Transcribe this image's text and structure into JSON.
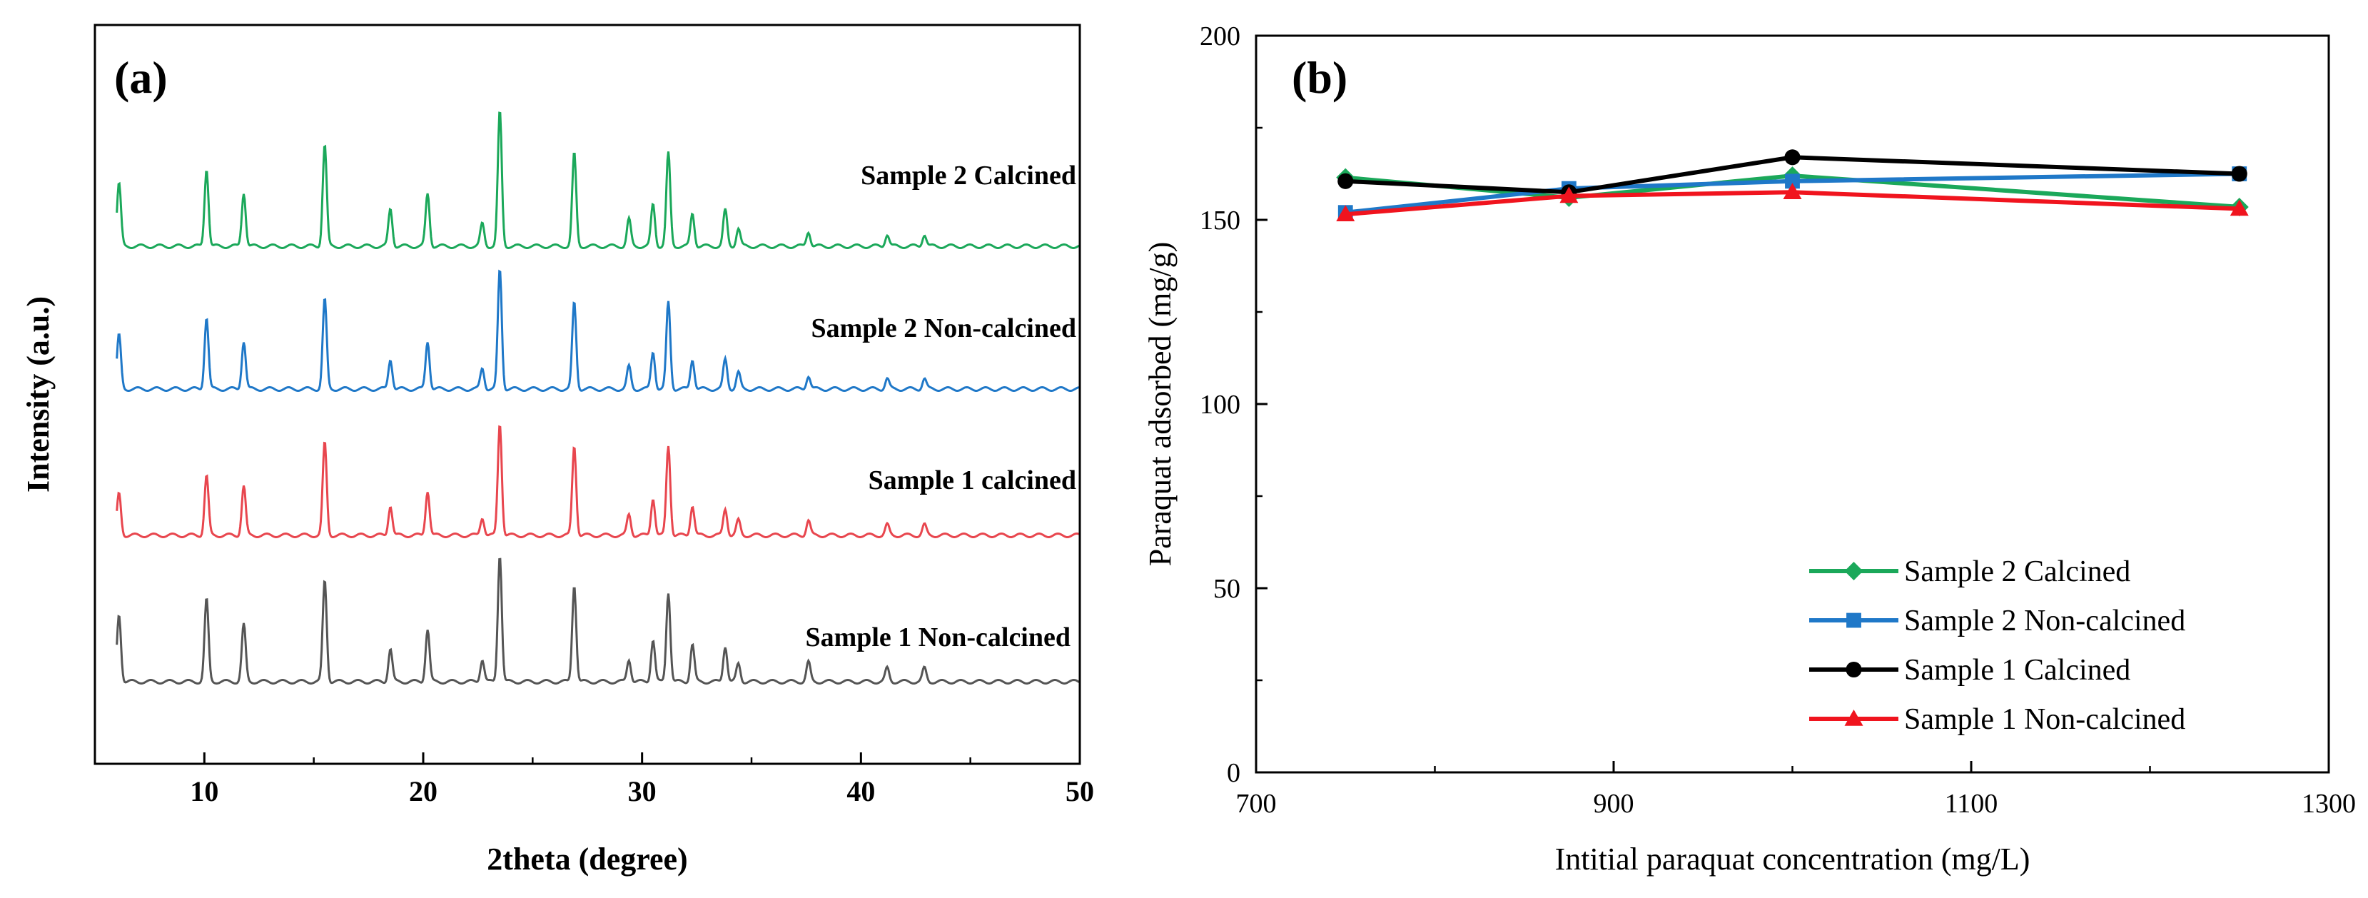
{
  "chart_data": [
    {
      "type": "line",
      "panel_label": "(a)",
      "xlabel": "2theta (degree)",
      "ylabel": "Intensity (a.u.)",
      "xlim": [
        5,
        50
      ],
      "xticks": [
        10,
        20,
        30,
        40,
        50
      ],
      "y_ticks_shown": false,
      "legend": "inline trace labels",
      "peaks": [
        6.1,
        10.1,
        11.8,
        15.5,
        18.5,
        20.2,
        22.7,
        23.5,
        26.9,
        29.4,
        30.5,
        31.2,
        32.3,
        33.8,
        34.4,
        37.6,
        41.2,
        42.9
      ],
      "series": [
        {
          "name": "Sample 2 Calcined",
          "color": "#1ba85a",
          "offset": 3,
          "peak_heights": [
            0.42,
            0.52,
            0.36,
            0.68,
            0.25,
            0.35,
            0.15,
            0.9,
            0.62,
            0.18,
            0.28,
            0.62,
            0.22,
            0.24,
            0.12,
            0.1,
            0.08,
            0.08
          ]
        },
        {
          "name": "Sample 2 Non-calcined",
          "color": "#1f78c8",
          "offset": 2,
          "peak_heights": [
            0.36,
            0.48,
            0.32,
            0.6,
            0.2,
            0.32,
            0.14,
            0.8,
            0.58,
            0.15,
            0.25,
            0.58,
            0.2,
            0.2,
            0.11,
            0.09,
            0.07,
            0.07
          ]
        },
        {
          "name": "Sample 1 calcined",
          "color": "#e8464e",
          "offset": 1,
          "peak_heights": [
            0.28,
            0.4,
            0.33,
            0.62,
            0.2,
            0.3,
            0.12,
            0.75,
            0.6,
            0.14,
            0.25,
            0.6,
            0.2,
            0.18,
            0.1,
            0.1,
            0.07,
            0.07
          ]
        },
        {
          "name": "Sample 1 Non-calcined",
          "color": "#555555",
          "offset": 0,
          "peak_heights": [
            0.45,
            0.55,
            0.38,
            0.68,
            0.22,
            0.35,
            0.15,
            0.85,
            0.65,
            0.15,
            0.28,
            0.6,
            0.25,
            0.24,
            0.12,
            0.13,
            0.09,
            0.09
          ]
        }
      ]
    },
    {
      "type": "line",
      "panel_label": "(b)",
      "xlabel": "Intitial paraquat concentration (mg/L)",
      "ylabel": "Paraquat adsorbed (mg/g)",
      "xlim": [
        700,
        1300
      ],
      "ylim": [
        0,
        200
      ],
      "xticks": [
        700,
        900,
        1100,
        1300
      ],
      "yticks": [
        0,
        50,
        100,
        150,
        200
      ],
      "legend": "bottom-right",
      "x": [
        750,
        875,
        1000,
        1250
      ],
      "series": [
        {
          "name": "Sample 2 Calcined",
          "color": "#1ba85a",
          "marker": "diamond",
          "values": [
            161.5,
            156,
            162,
            153.5
          ]
        },
        {
          "name": "Sample 2 Non-calcined",
          "color": "#1f78c8",
          "marker": "square",
          "values": [
            152,
            158.5,
            160.5,
            162.5
          ]
        },
        {
          "name": "Sample 1 Calcined",
          "color": "#000000",
          "marker": "circle",
          "values": [
            160.5,
            157.5,
            167,
            162.5
          ]
        },
        {
          "name": "Sample 1 Non-calcined",
          "color": "#f0141e",
          "marker": "triangle",
          "values": [
            151.5,
            156.5,
            157.5,
            153
          ]
        }
      ]
    }
  ]
}
